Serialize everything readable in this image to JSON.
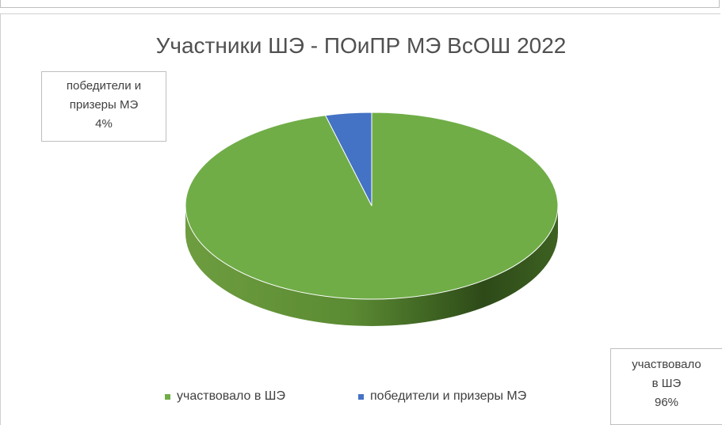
{
  "chart_data": {
    "type": "pie",
    "title": "Участники ШЭ - ПОиПР МЭ ВсОШ 2022",
    "slices": [
      {
        "name": "участвовало в ШЭ",
        "value": 96,
        "label_line1": "участвовало",
        "label_line2": "в ШЭ",
        "label_pct": "96%",
        "color": "#70ad47"
      },
      {
        "name": "победители и призеры МЭ",
        "value": 4,
        "label_line1": "победители и",
        "label_line2": "призеры МЭ",
        "label_pct": "4%",
        "color": "#4472c4"
      }
    ],
    "legend_position": "bottom",
    "style": "3d"
  }
}
